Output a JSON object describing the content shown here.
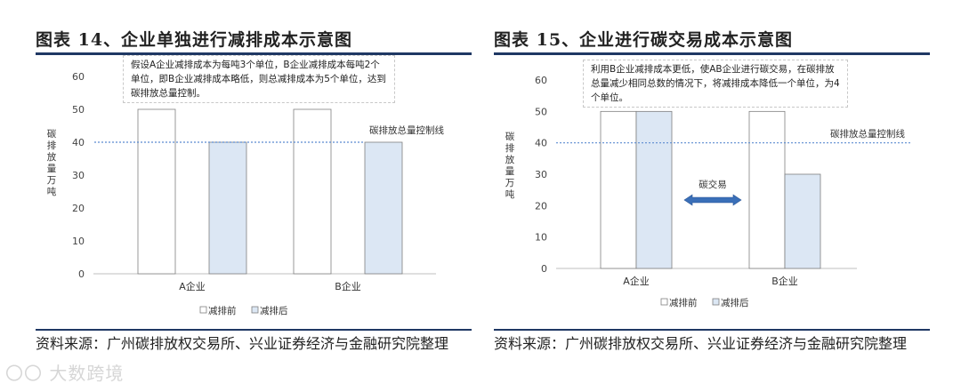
{
  "left": {
    "title": "图表 14、企业单独进行减排成本示意图",
    "note": "假设A企业减排成本为每吨3个单位，B企业减排成本每吨2个单位，即B企业减排成本略低，则总减排成本为5个单位，达到碳排放总量控制。",
    "source": "资料来源：广州碳排放权交易所、兴业证券经济与金融研究院整理"
  },
  "right": {
    "title": "图表 15、企业进行碳交易成本示意图",
    "note": "利用B企业减排成本更低，使AB企业进行碳交易，在碳排放总量减少相同总数的情况下，将减排成本降低一个单位，为4个单位。",
    "arrow_label": "碳交易",
    "source": "资料来源：广州碳排放权交易所、兴业证券经济与金融研究院整理"
  },
  "watermark": "〇〇 大数跨境",
  "chart_data": [
    {
      "type": "bar",
      "categories": [
        "A企业",
        "B企业"
      ],
      "series": [
        {
          "name": "减排前",
          "values": [
            50,
            50
          ],
          "color": "#ffffff"
        },
        {
          "name": "减排后",
          "values": [
            40,
            40
          ],
          "color": "#dce7f4"
        }
      ],
      "ylabel": "碳排放量万吨",
      "ylim": [
        0,
        60
      ],
      "yticks": [
        0,
        10,
        20,
        30,
        40,
        50,
        60
      ],
      "reference_line": {
        "value": 40,
        "label": "碳排放总量控制线"
      },
      "legend": "bottom"
    },
    {
      "type": "bar",
      "categories": [
        "A企业",
        "B企业"
      ],
      "series": [
        {
          "name": "减排前",
          "values": [
            50,
            50
          ],
          "color": "#ffffff"
        },
        {
          "name": "减排后",
          "values": [
            50,
            30
          ],
          "color": "#dce7f4"
        }
      ],
      "ylabel": "碳排放量万吨",
      "ylim": [
        0,
        60
      ],
      "yticks": [
        0,
        10,
        20,
        30,
        40,
        50,
        60
      ],
      "reference_line": {
        "value": 40,
        "label": "碳排放总量控制线"
      },
      "legend": "bottom"
    }
  ]
}
